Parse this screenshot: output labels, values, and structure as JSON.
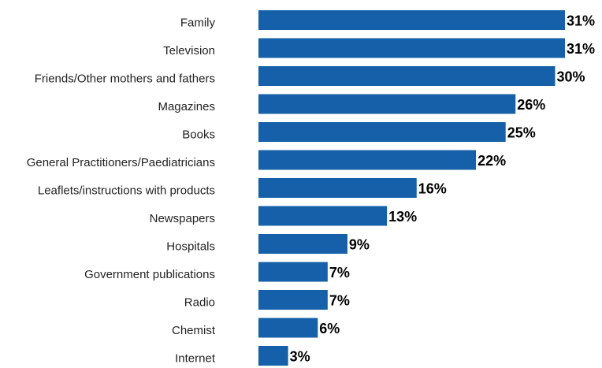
{
  "chart_data": {
    "type": "bar",
    "orientation": "horizontal",
    "categories": [
      "Family",
      "Television",
      "Friends/Other mothers and fathers",
      "Magazines",
      "Books",
      "General Practitioners/Paediatricians",
      "Leaflets/instructions with products",
      "Newspapers",
      "Hospitals",
      "Government publications",
      "Radio",
      "Chemist",
      "Internet"
    ],
    "values": [
      31,
      31,
      30,
      26,
      25,
      22,
      16,
      13,
      9,
      7,
      7,
      6,
      3
    ],
    "value_labels": [
      "31%",
      "31%",
      "30%",
      "26%",
      "25%",
      "22%",
      "16%",
      "13%",
      "9%",
      "7%",
      "7%",
      "6%",
      "3%"
    ],
    "unit": "%",
    "xlim": [
      0,
      31
    ],
    "grid": false,
    "legend": "none",
    "bar_color": "#1560a8",
    "title": "",
    "xlabel": "",
    "ylabel": ""
  }
}
